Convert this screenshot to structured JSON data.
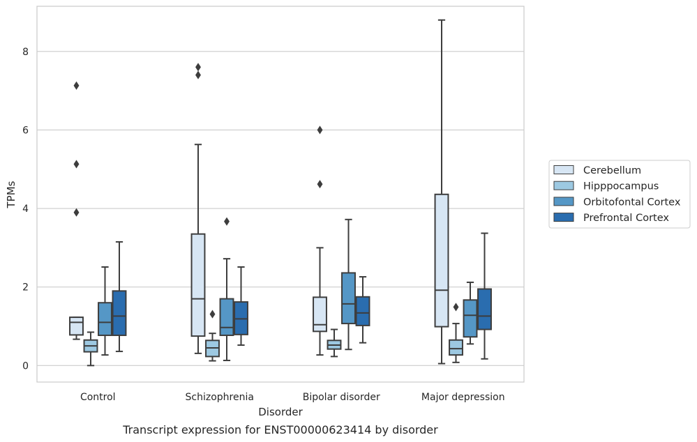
{
  "chart_data": {
    "type": "box",
    "caption": "Transcript expression for ENST00000623414 by disorder",
    "xlabel": "Disorder",
    "ylabel": "TPMs",
    "ylim": [
      -0.42,
      9.15
    ],
    "yticks": [
      0,
      2,
      4,
      6,
      8
    ],
    "grid": "horizontal",
    "legend_position": "right",
    "categories": [
      "Control",
      "Schizophrenia",
      "Bipolar disorder",
      "Major depression"
    ],
    "series": [
      {
        "name": "Cerebellum",
        "color": "#d7e6f4",
        "boxes": [
          {
            "whisker_low": 0.67,
            "q1": 0.78,
            "median": 1.1,
            "q3": 1.23,
            "whisker_high": 1.23,
            "outliers": [
              3.9,
              5.13,
              7.13
            ]
          },
          {
            "whisker_low": 0.31,
            "q1": 0.75,
            "median": 1.7,
            "q3": 3.35,
            "whisker_high": 5.63,
            "outliers": [
              7.4,
              7.6
            ]
          },
          {
            "whisker_low": 0.27,
            "q1": 0.87,
            "median": 1.04,
            "q3": 1.74,
            "whisker_high": 3.0,
            "outliers": [
              4.62,
              6.0
            ]
          },
          {
            "whisker_low": 0.05,
            "q1": 0.99,
            "median": 1.92,
            "q3": 4.36,
            "whisker_high": 8.8,
            "outliers": []
          }
        ]
      },
      {
        "name": "Hipppocampus",
        "color": "#9dc9e2",
        "boxes": [
          {
            "whisker_low": 0.0,
            "q1": 0.35,
            "median": 0.5,
            "q3": 0.65,
            "whisker_high": 0.85,
            "outliers": []
          },
          {
            "whisker_low": 0.12,
            "q1": 0.23,
            "median": 0.45,
            "q3": 0.64,
            "whisker_high": 0.82,
            "outliers": [
              1.31
            ]
          },
          {
            "whisker_low": 0.23,
            "q1": 0.42,
            "median": 0.52,
            "q3": 0.64,
            "whisker_high": 0.92,
            "outliers": []
          },
          {
            "whisker_low": 0.08,
            "q1": 0.27,
            "median": 0.43,
            "q3": 0.65,
            "whisker_high": 1.07,
            "outliers": [
              1.49
            ]
          }
        ]
      },
      {
        "name": "Orbitofontal Cortex",
        "color": "#5597c6",
        "boxes": [
          {
            "whisker_low": 0.27,
            "q1": 0.77,
            "median": 1.1,
            "q3": 1.6,
            "whisker_high": 2.51,
            "outliers": []
          },
          {
            "whisker_low": 0.13,
            "q1": 0.77,
            "median": 0.97,
            "q3": 1.7,
            "whisker_high": 2.72,
            "outliers": [
              3.67
            ]
          },
          {
            "whisker_low": 0.41,
            "q1": 1.07,
            "median": 1.57,
            "q3": 2.36,
            "whisker_high": 3.72,
            "outliers": []
          },
          {
            "whisker_low": 0.55,
            "q1": 0.73,
            "median": 1.28,
            "q3": 1.67,
            "whisker_high": 2.12,
            "outliers": []
          }
        ]
      },
      {
        "name": "Prefrontal Cortex",
        "color": "#2a6daf",
        "boxes": [
          {
            "whisker_low": 0.36,
            "q1": 0.77,
            "median": 1.26,
            "q3": 1.9,
            "whisker_high": 3.15,
            "outliers": []
          },
          {
            "whisker_low": 0.52,
            "q1": 0.79,
            "median": 1.19,
            "q3": 1.62,
            "whisker_high": 2.51,
            "outliers": []
          },
          {
            "whisker_low": 0.58,
            "q1": 1.02,
            "median": 1.34,
            "q3": 1.75,
            "whisker_high": 2.26,
            "outliers": []
          },
          {
            "whisker_low": 0.17,
            "q1": 0.92,
            "median": 1.26,
            "q3": 1.95,
            "whisker_high": 3.37,
            "outliers": []
          }
        ]
      }
    ]
  }
}
